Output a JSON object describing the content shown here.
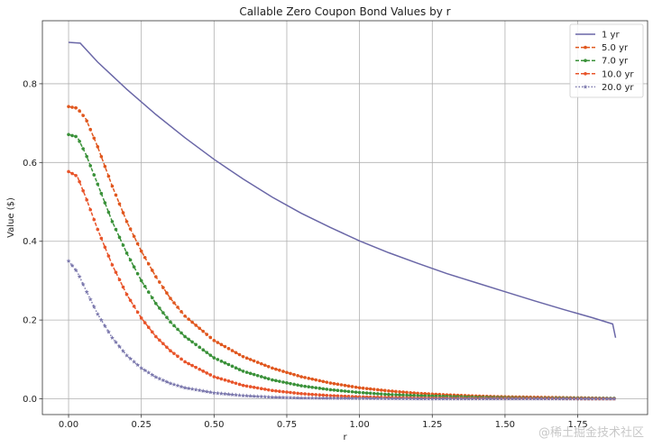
{
  "watermark": "@稀土掘金技术社区",
  "chart_data": {
    "type": "line",
    "title": "Callable Zero Coupon Bond Values by r",
    "xlabel": "r",
    "ylabel": "Value ($)",
    "xlim": [
      -0.09,
      1.99
    ],
    "ylim": [
      -0.04,
      0.96
    ],
    "xticks": [
      "0.00",
      "0.25",
      "0.50",
      "0.75",
      "1.00",
      "1.25",
      "1.50",
      "1.75"
    ],
    "xtick_values": [
      0,
      0.25,
      0.5,
      0.75,
      1.0,
      1.25,
      1.5,
      1.75
    ],
    "yticks": [
      "0.0",
      "0.2",
      "0.4",
      "0.6",
      "0.8"
    ],
    "ytick_values": [
      0,
      0.2,
      0.4,
      0.6,
      0.8
    ],
    "grid": true,
    "legend_position": "top-right",
    "series": [
      {
        "name": "1 yr",
        "color": "#6a67a7",
        "style": "solid",
        "marker": "none",
        "x": [
          0,
          0.04,
          0.1,
          0.2,
          0.3,
          0.4,
          0.5,
          0.6,
          0.7,
          0.8,
          0.9,
          1.0,
          1.1,
          1.2,
          1.3,
          1.4,
          1.5,
          1.6,
          1.7,
          1.8,
          1.87,
          1.88
        ],
        "y": [
          0.905,
          0.903,
          0.855,
          0.786,
          0.722,
          0.663,
          0.608,
          0.558,
          0.512,
          0.471,
          0.435,
          0.401,
          0.371,
          0.344,
          0.318,
          0.295,
          0.272,
          0.249,
          0.227,
          0.206,
          0.19,
          0.155
        ]
      },
      {
        "name": "5.0 yr",
        "color": "#e0571e",
        "style": "dashed",
        "marker": "dot",
        "x": [
          0,
          0.03,
          0.06,
          0.1,
          0.15,
          0.2,
          0.25,
          0.3,
          0.35,
          0.4,
          0.5,
          0.6,
          0.7,
          0.8,
          0.9,
          1.0,
          1.1,
          1.2,
          1.3,
          1.4,
          1.5,
          1.6,
          1.7,
          1.8,
          1.88
        ],
        "y": [
          0.742,
          0.738,
          0.71,
          0.64,
          0.54,
          0.45,
          0.375,
          0.31,
          0.255,
          0.21,
          0.148,
          0.107,
          0.078,
          0.056,
          0.04,
          0.028,
          0.02,
          0.014,
          0.01,
          0.007,
          0.005,
          0.004,
          0.003,
          0.002,
          0.001
        ]
      },
      {
        "name": "7.0 yr",
        "color": "#3a9139",
        "style": "dashed",
        "marker": "dot",
        "x": [
          0,
          0.03,
          0.06,
          0.1,
          0.15,
          0.2,
          0.25,
          0.3,
          0.35,
          0.4,
          0.5,
          0.6,
          0.7,
          0.8,
          0.9,
          1.0,
          1.1,
          1.2,
          1.3,
          1.4,
          1.5,
          1.6,
          1.7,
          1.8,
          1.88
        ],
        "y": [
          0.671,
          0.665,
          0.62,
          0.545,
          0.45,
          0.37,
          0.3,
          0.242,
          0.195,
          0.158,
          0.104,
          0.07,
          0.048,
          0.033,
          0.023,
          0.016,
          0.011,
          0.008,
          0.006,
          0.004,
          0.003,
          0.002,
          0.002,
          0.001,
          0.001
        ]
      },
      {
        "name": "10.0 yr",
        "color": "#e8542a",
        "style": "dashed",
        "marker": "dot",
        "x": [
          0,
          0.03,
          0.06,
          0.1,
          0.15,
          0.2,
          0.25,
          0.3,
          0.35,
          0.4,
          0.5,
          0.6,
          0.7,
          0.8,
          0.9,
          1.0,
          1.2,
          1.4,
          1.6,
          1.8,
          1.88
        ],
        "y": [
          0.577,
          0.565,
          0.51,
          0.43,
          0.34,
          0.265,
          0.205,
          0.158,
          0.122,
          0.094,
          0.056,
          0.034,
          0.021,
          0.013,
          0.008,
          0.005,
          0.002,
          0.001,
          0.001,
          0.0,
          0.0
        ]
      },
      {
        "name": "20.0 yr",
        "color": "#7b78ad",
        "style": "dotted",
        "marker": "star",
        "x": [
          0,
          0.03,
          0.06,
          0.1,
          0.15,
          0.2,
          0.25,
          0.3,
          0.35,
          0.4,
          0.5,
          0.6,
          0.7,
          0.8,
          1.0,
          1.2,
          1.4,
          1.6,
          1.8,
          1.88
        ],
        "y": [
          0.35,
          0.322,
          0.275,
          0.215,
          0.155,
          0.11,
          0.078,
          0.055,
          0.039,
          0.028,
          0.015,
          0.008,
          0.004,
          0.002,
          0.001,
          0.0,
          0.0,
          0.0,
          0.0,
          0.0
        ]
      }
    ]
  }
}
